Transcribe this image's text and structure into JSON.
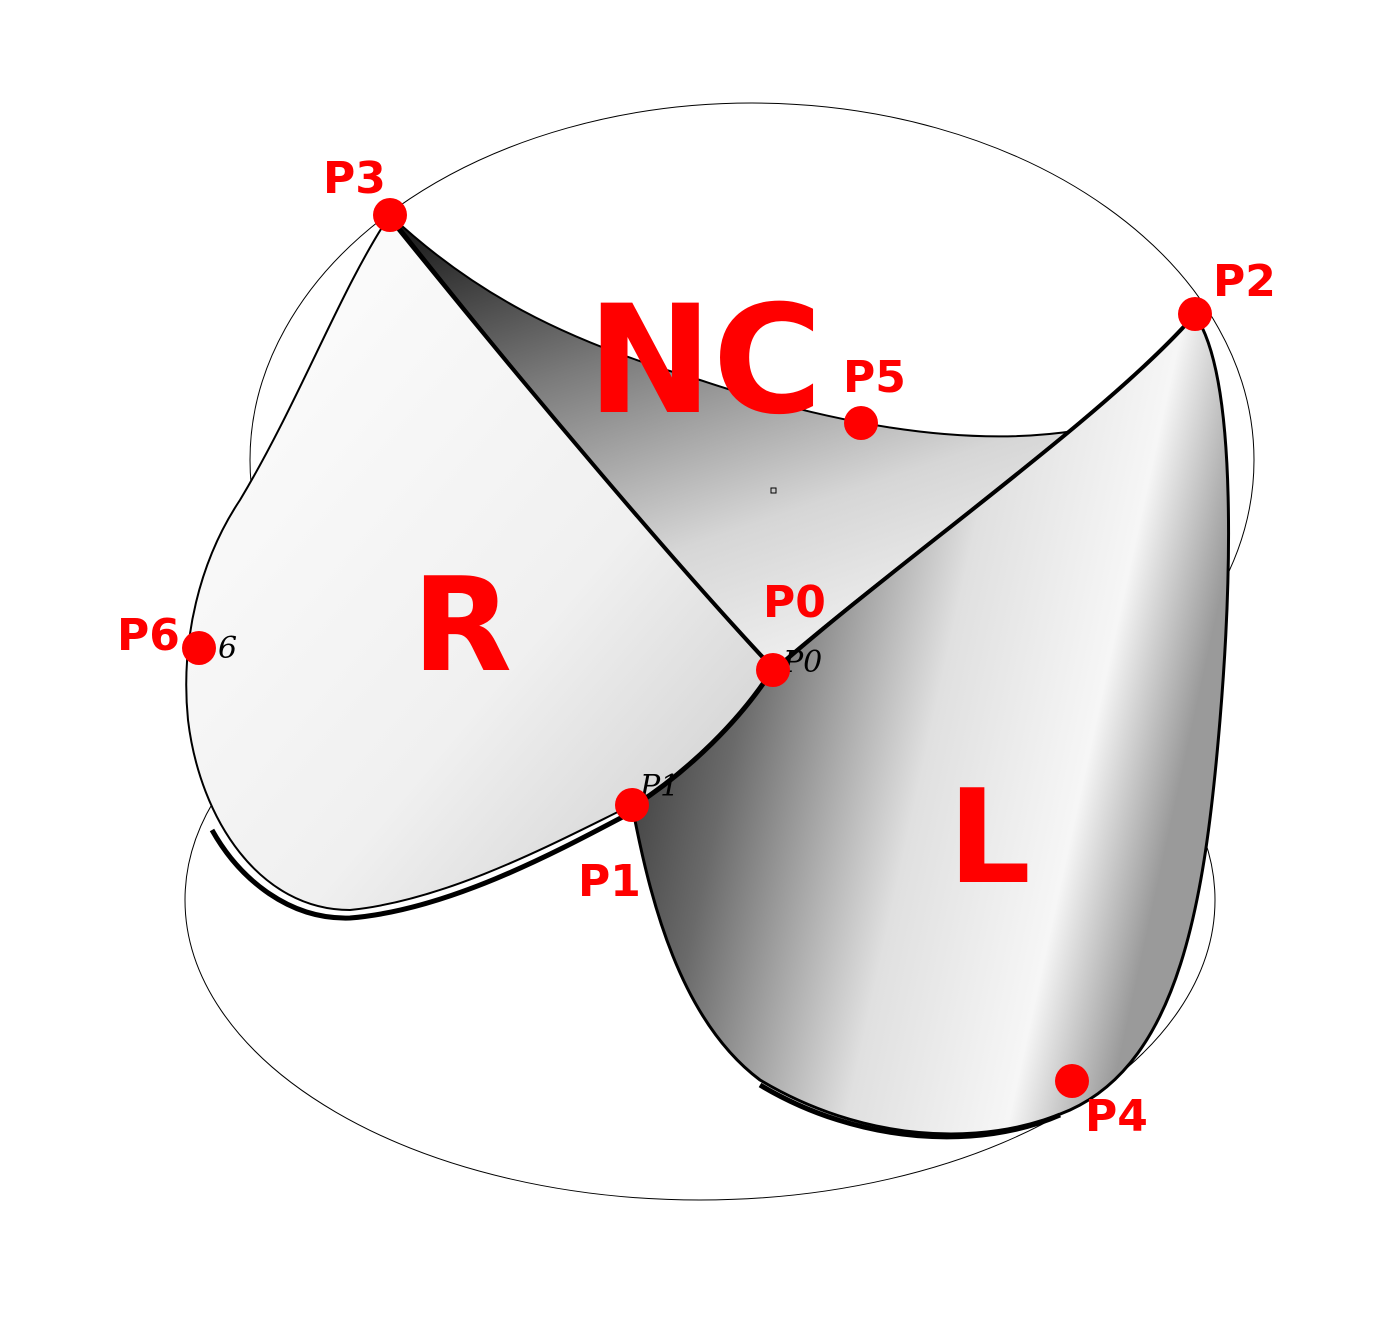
{
  "colors": {
    "accent": "#ff0000",
    "outline": "#000000"
  },
  "leaflets": {
    "nc": "NC",
    "r": "R",
    "l": "L"
  },
  "points": {
    "p0": "P0",
    "p1": "P1",
    "p2": "P2",
    "p3": "P3",
    "p4": "P4",
    "p5": "P5",
    "p6": "P6"
  },
  "small_labels": {
    "p0": "P0",
    "p1": "P1",
    "p6": "6"
  }
}
